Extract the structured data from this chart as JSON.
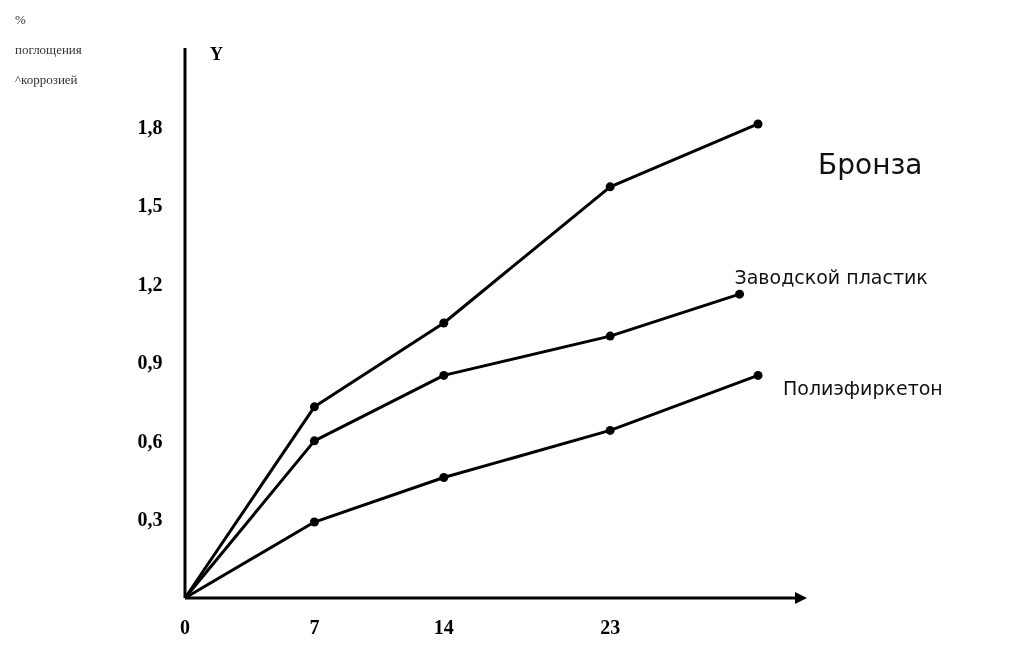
{
  "chart_data": {
    "type": "line",
    "ylabel": "% поглощения ^коррозией",
    "annotations": [
      "Y"
    ],
    "xlim": [
      0,
      33
    ],
    "xticks": [
      0,
      7,
      14,
      23
    ],
    "ylim": [
      0,
      2.1
    ],
    "yticks": [
      {
        "value": 0.3,
        "label": "0,3"
      },
      {
        "value": 0.6,
        "label": "0,6"
      },
      {
        "value": 0.9,
        "label": "0,9"
      },
      {
        "value": 1.2,
        "label": "1,2"
      },
      {
        "value": 1.5,
        "label": "1,5"
      },
      {
        "value": 1.8,
        "label": "1,8"
      }
    ],
    "grid": false,
    "marker": "circle",
    "line_style": "solid",
    "series": [
      {
        "name": "Бронза",
        "color": "#000000",
        "x": [
          0,
          7,
          14,
          23,
          31
        ],
        "values": [
          0,
          0.73,
          1.05,
          1.57,
          1.81
        ]
      },
      {
        "name": "Заводской пластик",
        "color": "#000000",
        "x": [
          0,
          7,
          14,
          23,
          30
        ],
        "values": [
          0,
          0.6,
          0.85,
          1.0,
          1.16
        ]
      },
      {
        "name": "Полиэфиркетон",
        "color": "#000000",
        "x": [
          0,
          7,
          14,
          23,
          31
        ],
        "values": [
          0,
          0.29,
          0.46,
          0.64,
          0.85
        ]
      }
    ]
  }
}
